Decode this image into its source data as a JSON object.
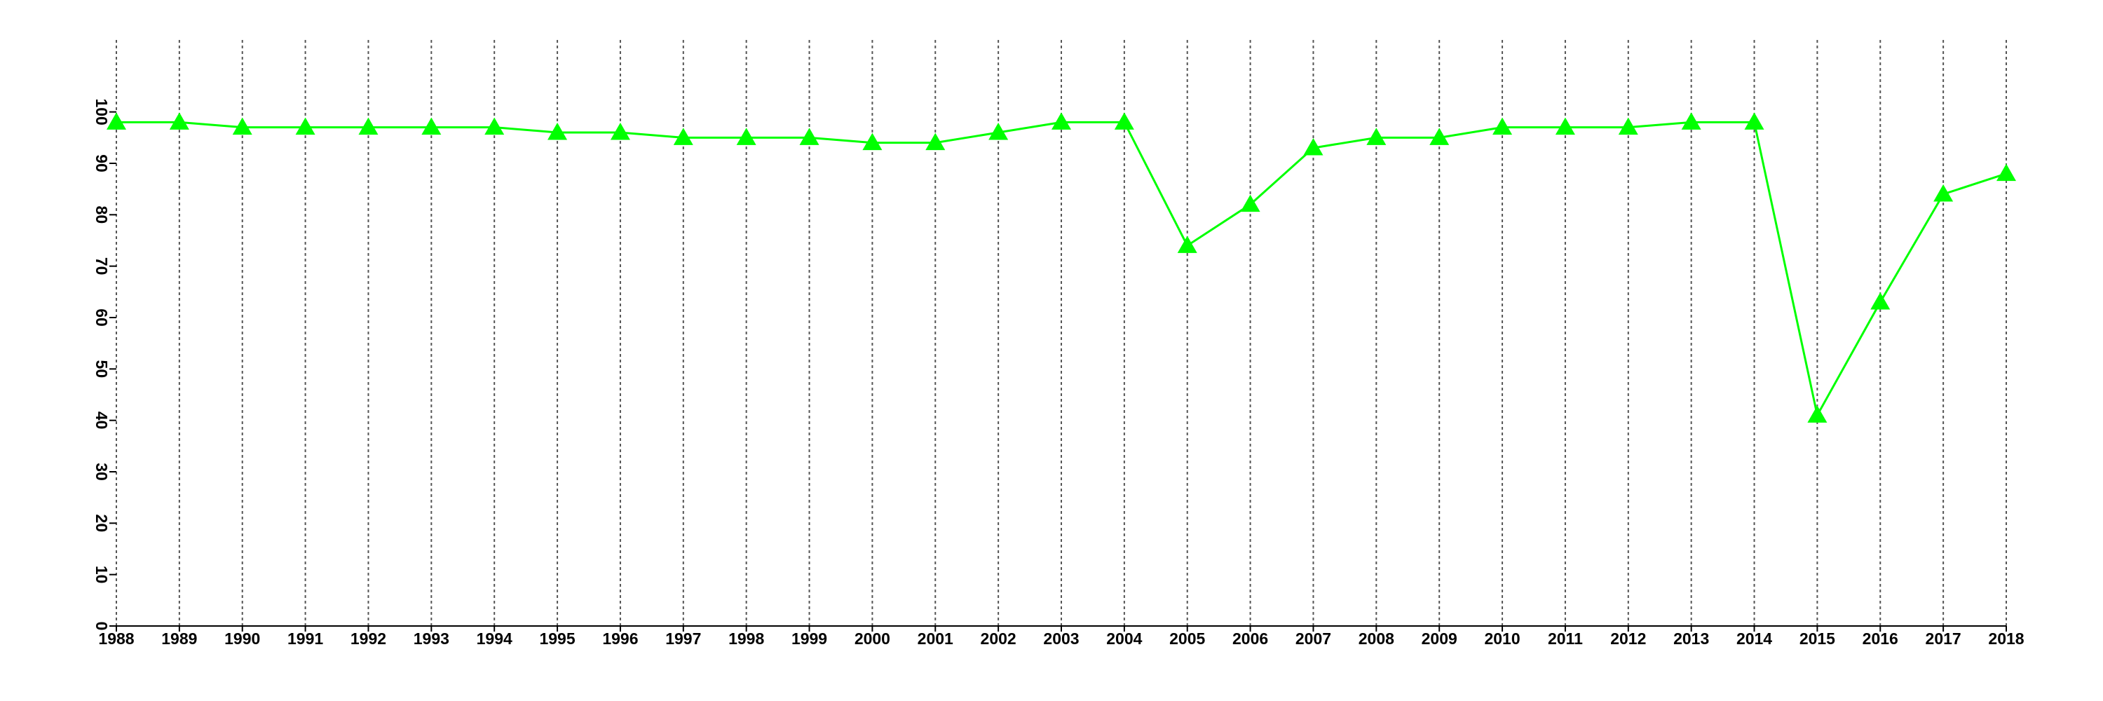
{
  "chart_data": {
    "type": "line",
    "x": [
      1988,
      1989,
      1990,
      1991,
      1992,
      1993,
      1994,
      1995,
      1996,
      1997,
      1998,
      1999,
      2000,
      2001,
      2002,
      2003,
      2004,
      2005,
      2006,
      2007,
      2008,
      2009,
      2010,
      2011,
      2012,
      2013,
      2014,
      2015,
      2016,
      2017,
      2018
    ],
    "series": [
      {
        "color": "#00ff00",
        "marker": "triangle",
        "values": [
          98,
          98,
          97,
          97,
          97,
          97,
          97,
          96,
          96,
          95,
          95,
          95,
          94,
          94,
          96,
          98,
          98,
          74,
          82,
          93,
          95,
          95,
          97,
          97,
          97,
          98,
          98,
          41,
          63,
          84,
          88
        ]
      }
    ],
    "xlim": [
      1988,
      2018
    ],
    "xticks": [
      1988,
      1989,
      1990,
      1991,
      1992,
      1993,
      1994,
      1995,
      1996,
      1997,
      1998,
      1999,
      2000,
      2001,
      2002,
      2003,
      2004,
      2005,
      2006,
      2007,
      2008,
      2009,
      2010,
      2011,
      2012,
      2013,
      2014,
      2015,
      2016,
      2017,
      2018
    ],
    "ylim": [
      0,
      114
    ],
    "yticks": [
      0,
      10,
      20,
      30,
      40,
      50,
      60,
      70,
      80,
      90,
      100
    ],
    "grid": true
  }
}
